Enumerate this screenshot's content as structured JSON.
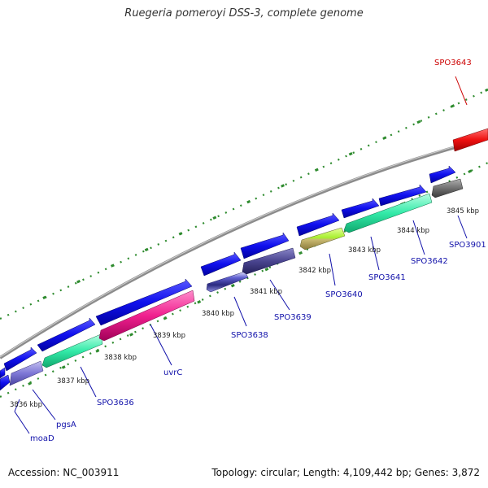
{
  "title": "Ruegeria pomeroyi DSS-3, complete genome",
  "footer": {
    "accession": "Accession: NC_003911",
    "summary": "Topology: circular; Length: 4,109,442 bp; Genes: 3,872"
  },
  "colors": {
    "backbone": "#8c8c8c",
    "tick_dots": "#2e8b2e",
    "label_blue": "#1111aa",
    "label_red": "#cc0000"
  },
  "kbp_labels": [
    "3836 kbp",
    "3837 kbp",
    "3838 kbp",
    "3839 kbp",
    "3840 kbp",
    "3841 kbp",
    "3842 kbp",
    "3843 kbp",
    "3844 kbp",
    "3845 kbp"
  ],
  "gene_labels": [
    "moaD",
    "pgsA",
    "SPO3636",
    "uvrC",
    "SPO3638",
    "SPO3639",
    "SPO3640",
    "SPO3641",
    "SPO3642",
    "SPO3901",
    "SPO3643"
  ]
}
